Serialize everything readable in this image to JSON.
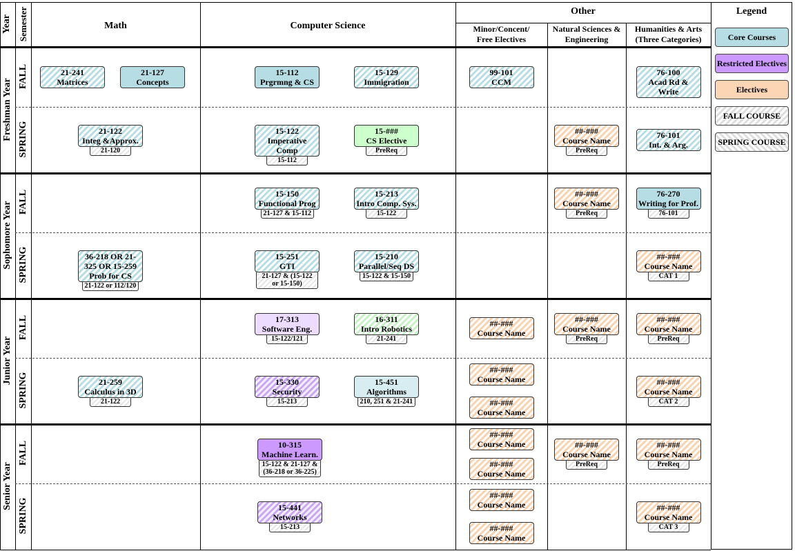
{
  "header": {
    "year": "Year",
    "semester": "Semester",
    "math": "Math",
    "cs": "Computer Science",
    "other": "Other",
    "minor": [
      "Minor/Concent/",
      "Free Electives"
    ],
    "natsci": [
      "Natural Sciences &",
      "Engineering"
    ],
    "hum": [
      "Humanities & Arts",
      "(Three Categories)"
    ]
  },
  "legend": {
    "title": "Legend",
    "items": [
      {
        "label": "Core Courses",
        "style": "core"
      },
      {
        "label": "Restricted Electives",
        "style": "restricted"
      },
      {
        "label": "Electives",
        "style": "elective"
      },
      {
        "label": "FALL COURSE",
        "style": "gray-fall"
      },
      {
        "label": "SPRING COURSE",
        "style": "gray-spring"
      }
    ]
  },
  "years": [
    {
      "name": "Freshman Year",
      "semesters": [
        {
          "name": "FALL",
          "cells": {
            "math": [
              {
                "code": "21-241",
                "name": "Matrices",
                "style": "core-hatch"
              },
              {
                "code": "21-127",
                "name": "Concepts",
                "style": "core"
              }
            ],
            "cs": [
              {
                "code": "15-112",
                "name": "Prgrmng & CS",
                "style": "core"
              },
              {
                "code": "15-129",
                "name": "Immigration",
                "style": "core-hatch"
              }
            ],
            "minor": [
              {
                "code": "99-101",
                "name": "CCM",
                "style": "core-hatch"
              }
            ],
            "hum": [
              {
                "code": "76-100",
                "name": "Acad Rd & Write",
                "style": "core-hatch"
              }
            ]
          }
        },
        {
          "name": "SPRING",
          "cells": {
            "math": [
              {
                "code": "21-122",
                "name": "Integ &Approx.",
                "prereq": "21-120",
                "style": "core-hatch"
              }
            ],
            "cs": [
              {
                "code": "15-122",
                "name": "Imperative Comp",
                "prereq": "15-112",
                "style": "core-hatch"
              },
              {
                "code": "15-###",
                "name": "CS Elective",
                "prereq": "PreReq",
                "style": "green"
              }
            ],
            "natsci": [
              {
                "code": "##-###",
                "name": "Course Name",
                "prereq": "PreReq",
                "style": "elective-hatch"
              }
            ],
            "hum": [
              {
                "code": "76-101",
                "name": "Int. & Arg.",
                "style": "core-hatch"
              }
            ]
          }
        }
      ]
    },
    {
      "name": "Sophomore Year",
      "semesters": [
        {
          "name": "FALL",
          "cells": {
            "cs": [
              {
                "code": "15-150",
                "name": "Functional Prog",
                "prereq": "21-127 & 15-112",
                "style": "core-hatch"
              },
              {
                "code": "15-213",
                "name": "Intro Comp. Sys.",
                "prereq": "15-122",
                "style": "core-hatch"
              }
            ],
            "natsci": [
              {
                "code": "##-###",
                "name": "Course Name",
                "prereq": "PreReq",
                "style": "elective-hatch"
              }
            ],
            "hum": [
              {
                "code": "76-270",
                "name": "Writing for Prof.",
                "prereq": "76-101",
                "style": "core"
              }
            ]
          }
        },
        {
          "name": "SPRING",
          "cells": {
            "math": [
              {
                "code": "36-218 OR 21-325 OR 15-259",
                "name": "Prob for CS",
                "prereq": "21-122 or 112/120",
                "style": "core-hatch"
              }
            ],
            "cs": [
              {
                "code": "15-251",
                "name": "GTI",
                "prereq": "21-127 & (15-122 or 15-150)",
                "style": "core-hatch"
              },
              {
                "code": "15-210",
                "name": "Parallel/Seq DS",
                "prereq": "15-122 & 15-150",
                "style": "core-hatch"
              }
            ],
            "hum": [
              {
                "code": "##-###",
                "name": "Course Name",
                "prereq": "CAT 1",
                "style": "elective-hatch"
              }
            ]
          }
        }
      ]
    },
    {
      "name": "Junior Year",
      "semesters": [
        {
          "name": "FALL",
          "cells": {
            "cs": [
              {
                "code": "17-313",
                "name": "Software Eng.",
                "prereq": "15-122/121",
                "style": "restricted-light"
              },
              {
                "code": "16-311",
                "name": "Intro Robotics",
                "prereq": "21-241",
                "style": "green-hatch"
              }
            ],
            "minor": [
              {
                "code": "##-###",
                "name": "Course Name",
                "style": "elective-hatch"
              }
            ],
            "natsci": [
              {
                "code": "##-###",
                "name": "Course Name",
                "prereq": "PreReq",
                "style": "elective-hatch"
              }
            ],
            "hum": [
              {
                "code": "##-###",
                "name": "Course Name",
                "prereq": "PreReq",
                "style": "elective-hatch"
              }
            ]
          }
        },
        {
          "name": "SPRING",
          "cells": {
            "math": [
              {
                "code": "21-259",
                "name": "Calculus in 3D",
                "prereq": "21-122",
                "style": "core-hatch"
              }
            ],
            "cs": [
              {
                "code": "15-330",
                "name": "Security",
                "prereq": "15-213",
                "style": "restricted-hatch"
              },
              {
                "code": "15-451",
                "name": "Algorithms",
                "prereq": "210, 251 & 21-241",
                "style": "core-light"
              }
            ],
            "minor": [
              {
                "code": "##-###",
                "name": "Course Name",
                "style": "elective-hatch"
              },
              {
                "code": "##-###",
                "name": "Course Name",
                "style": "elective-hatch"
              }
            ],
            "hum": [
              {
                "code": "##-###",
                "name": "Course Name",
                "prereq": "CAT 2",
                "style": "elective-hatch"
              }
            ]
          }
        }
      ]
    },
    {
      "name": "Senior Year",
      "semesters": [
        {
          "name": "FALL",
          "cells": {
            "cs": [
              {
                "code": "10-315",
                "name": "Machine Learn.",
                "prereq": "15-122 & 21-127 & (36-218 or 36-225)",
                "style": "restricted"
              }
            ],
            "minor": [
              {
                "code": "##-###",
                "name": "Course Name",
                "style": "elective-hatch"
              },
              {
                "code": "##-###",
                "name": "Course Name",
                "style": "elective-hatch"
              }
            ],
            "natsci": [
              {
                "code": "##-###",
                "name": "Course Name",
                "prereq": "PreReq",
                "style": "elective-hatch"
              }
            ],
            "hum": [
              {
                "code": "##-###",
                "name": "Course Name",
                "prereq": "PreReq",
                "style": "elective-hatch"
              }
            ]
          }
        },
        {
          "name": "SPRING",
          "cells": {
            "cs": [
              {
                "code": "15-441",
                "name": "Networks",
                "prereq": "15-213",
                "style": "restricted-hatch"
              }
            ],
            "minor": [
              {
                "code": "##-###",
                "name": "Course Name",
                "style": "elective-hatch"
              },
              {
                "code": "##-###",
                "name": "Course Name",
                "style": "elective-hatch"
              }
            ],
            "hum": [
              {
                "code": "##-###",
                "name": "Course Name",
                "prereq": "CAT 3",
                "style": "elective-hatch"
              }
            ]
          }
        }
      ]
    }
  ]
}
